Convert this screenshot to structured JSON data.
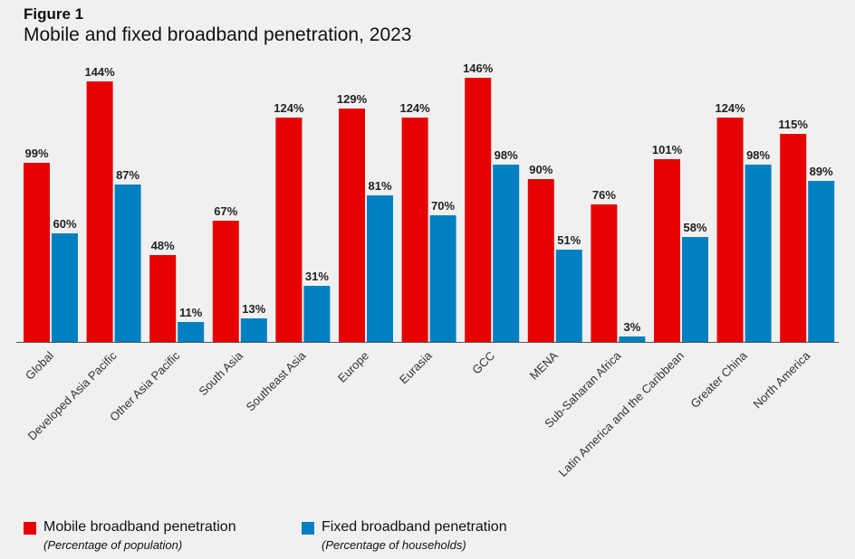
{
  "figure_label": "Figure 1",
  "figure_title": "Mobile and fixed broadband penetration, 2023",
  "chart_data": {
    "type": "bar",
    "title": "Mobile and fixed broadband penetration, 2023",
    "xlabel": "",
    "ylabel": "",
    "ylim": [
      0,
      150
    ],
    "grid": false,
    "legend_position": "bottom-left",
    "value_suffix": "%",
    "categories": [
      "Global",
      "Developed Asia Pacific",
      "Other Asia Pacific",
      "South Asia",
      "Southeast Asia",
      "Europe",
      "Eurasia",
      "GCC",
      "MENA",
      "Sub-Saharan Africa",
      "Latin America and the Caribbean",
      "Greater China",
      "North America"
    ],
    "series": [
      {
        "name": "Mobile broadband penetration",
        "subtitle": "(Percentage of population)",
        "color": "#e60000",
        "values": [
          99,
          144,
          48,
          67,
          124,
          129,
          124,
          146,
          90,
          76,
          101,
          124,
          115
        ]
      },
      {
        "name": "Fixed broadband penetration",
        "subtitle": "(Percentage of households)",
        "color": "#0080c0",
        "values": [
          60,
          87,
          11,
          13,
          31,
          81,
          70,
          98,
          51,
          3,
          58,
          98,
          89
        ]
      }
    ]
  }
}
